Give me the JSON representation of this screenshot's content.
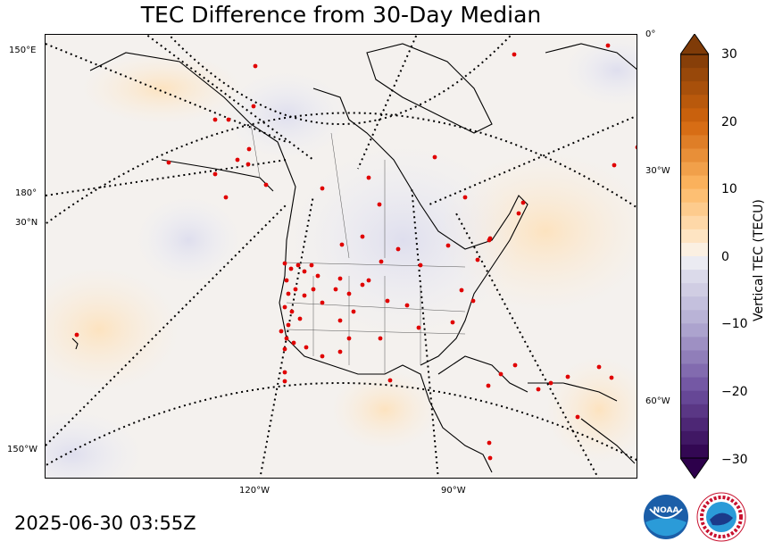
{
  "title": "TEC Difference from 30-Day Median",
  "timestamp": "2025-06-30 03:55Z",
  "colorbar": {
    "label": "Vertical TEC (TECU)",
    "ticks": [
      "30",
      "20",
      "10",
      "0",
      "−10",
      "−20",
      "−30"
    ],
    "min": -30,
    "max": 30
  },
  "graticule_labels": {
    "lon_150e": "150°E",
    "lon_180": "180°",
    "lat_30n": "30°N",
    "lon_150w": "150°W",
    "lon_120w": "120°W",
    "lon_90w": "90°W",
    "lon_0": "0°",
    "lon_30w": "30°W",
    "lon_60w": "60°W"
  },
  "logos": {
    "noaa_text": "NOAA",
    "nws_text": "NATIONAL WEATHER SERVICE"
  },
  "colors": {
    "positive": "#7f3b08",
    "negative": "#2d004b",
    "neutral": "#f7f7f7",
    "stations": "#e00000"
  }
}
